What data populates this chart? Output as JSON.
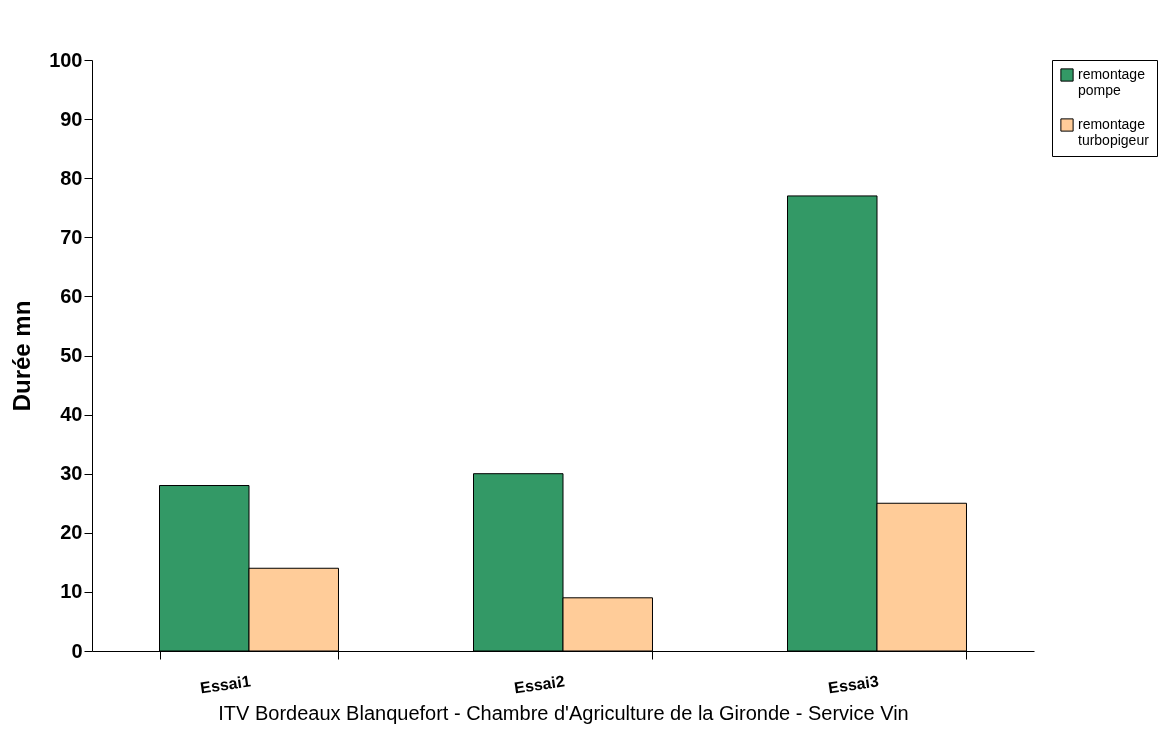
{
  "chart_data": {
    "type": "bar",
    "xlabel": "ITV Bordeaux Blanquefort - Chambre d'Agriculture de la Gironde - Service Vin",
    "ylabel": "Durée mn",
    "categories": [
      "Essai1",
      "Essai2",
      "Essai3"
    ],
    "series": [
      {
        "name": "remontage pompe",
        "color": "#339966",
        "values": [
          28,
          30,
          77
        ]
      },
      {
        "name": "remontage turbopigeur",
        "color": "#ffcc99",
        "values": [
          14,
          9,
          25
        ]
      }
    ],
    "ylim": [
      0,
      100
    ],
    "yticks": [
      0,
      10,
      20,
      30,
      40,
      50,
      60,
      70,
      80,
      90,
      100
    ],
    "grid": false,
    "legend": "top right"
  }
}
